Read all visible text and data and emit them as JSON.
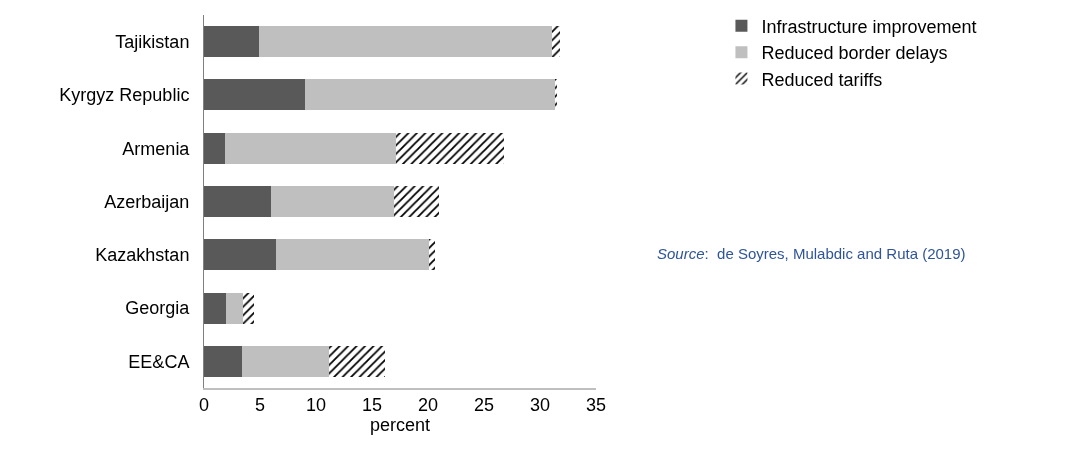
{
  "chart_data": {
    "type": "bar",
    "orientation": "horizontal",
    "stacked": true,
    "xlabel": "percent",
    "categories": [
      "Tajikistan",
      "Kyrgyz Republic",
      "Armenia",
      "Azerbaijan",
      "Kazakhstan",
      "Georgia",
      "EE&CA"
    ],
    "series": [
      {
        "name": "Infrastructure improvement",
        "color": "#595959",
        "values": [
          4.9,
          9.0,
          1.9,
          6.0,
          6.4,
          2.0,
          3.4
        ]
      },
      {
        "name": "Reduced border delays",
        "color": "#bfbfbf",
        "values": [
          26.2,
          22.4,
          15.2,
          11.0,
          13.7,
          1.5,
          7.8
        ]
      },
      {
        "name": "Reduced tariffs",
        "color": "#000000",
        "values": [
          0.7,
          0.1,
          9.7,
          4.0,
          0.5,
          1.0,
          5.0
        ]
      }
    ],
    "xlim": [
      0,
      35
    ],
    "xticks": [
      0,
      5,
      10,
      15,
      20,
      25,
      30,
      35
    ],
    "grid": false,
    "legend": "top right",
    "annotations": [
      "Source:  de Soyres, Mulabdic and Ruta (2019)"
    ]
  }
}
